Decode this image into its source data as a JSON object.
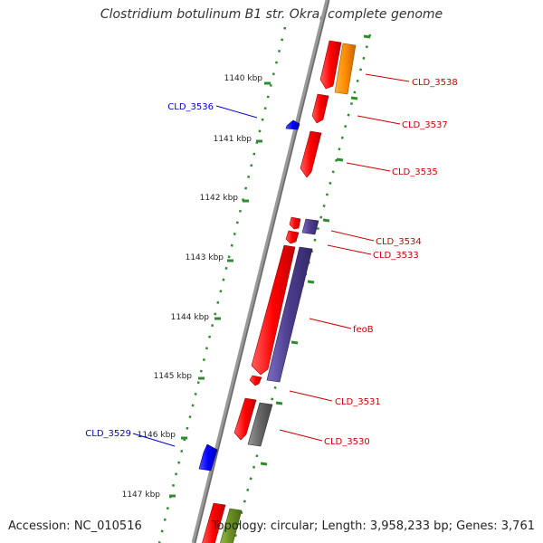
{
  "title": "Clostridium botulinum B1 str. Okra, complete genome",
  "accession": "Accession: NC_010516",
  "summary": "Topology: circular; Length: 3,958,233 bp; Genes: 3,761",
  "ticks": [
    "1140 kbp",
    "1141 kbp",
    "1142 kbp",
    "1143 kbp",
    "1144 kbp",
    "1145 kbp",
    "1146 kbp",
    "1147 kbp"
  ],
  "genes_forward": [
    "CLD_3538",
    "CLD_3537",
    "CLD_3535",
    "CLD_3534",
    "CLD_3533",
    "feoB",
    "CLD_3531",
    "CLD_3530"
  ],
  "genes_reverse": [
    "CLD_3536",
    "CLD_3529"
  ],
  "colors": {
    "forward_label": "#cc0000",
    "reverse_label": "#0000cc",
    "gene_red": "#ff0000",
    "gene_orange": "#ff8c00",
    "gene_purple": "#4b3c8c",
    "gene_gray": "#666666",
    "gene_olive": "#6b8e23",
    "gene_blue": "#0000ff",
    "backbone": "#888888",
    "ruler": "#2e8b2e"
  }
}
